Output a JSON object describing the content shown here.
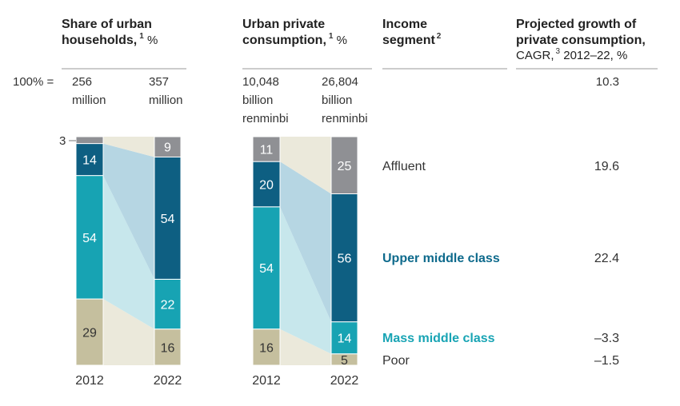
{
  "headers": {
    "col1_line1": "Share of urban",
    "col1_line2": "households,",
    "col1_sup": "1",
    "col1_unit": " %",
    "col2_line1": "Urban private",
    "col2_line2": "consumption,",
    "col2_sup": "1",
    "col2_unit": " %",
    "col3_line1": "Income",
    "col3_line2": "segment",
    "col3_sup": "2",
    "col4_line1": "Projected growth of",
    "col4_line2": "private consumption,",
    "col4_line3a": "CAGR,",
    "col4_sup": "3",
    "col4_line3b": " 2012–22, %"
  },
  "totals": {
    "label": "100% =",
    "hh_2012": [
      "256",
      "million"
    ],
    "hh_2022": [
      "357",
      "million"
    ],
    "cons_2012": [
      "10,048",
      "billion",
      "renminbi"
    ],
    "cons_2022": [
      "26,804",
      "billion",
      "renminbi"
    ],
    "total_growth": "10.3"
  },
  "colors": {
    "affluent": "#8f9094",
    "upper_middle": "#0e5f82",
    "mass_middle": "#17a3b3",
    "poor": "#c5bf9e",
    "flow_affluent": "#ebe9db",
    "flow_upper": "#b6d6e3",
    "flow_mass": "#c7e7ec",
    "flow_poor": "#ebe9db",
    "label_upper": "#0e6a8c",
    "label_mass": "#18a4b4"
  },
  "chart_data": [
    {
      "type": "bar",
      "stacked": true,
      "title": "Share of urban households, %",
      "categories": [
        "2012",
        "2022"
      ],
      "series": [
        {
          "name": "Poor",
          "values": [
            29,
            16
          ]
        },
        {
          "name": "Mass middle class",
          "values": [
            54,
            22
          ]
        },
        {
          "name": "Upper middle class",
          "values": [
            14,
            54
          ]
        },
        {
          "name": "Affluent",
          "values": [
            3,
            9
          ]
        }
      ]
    },
    {
      "type": "bar",
      "stacked": true,
      "title": "Urban private consumption, %",
      "categories": [
        "2012",
        "2022"
      ],
      "series": [
        {
          "name": "Poor",
          "values": [
            16,
            5
          ]
        },
        {
          "name": "Mass middle class",
          "values": [
            54,
            14
          ]
        },
        {
          "name": "Upper middle class",
          "values": [
            20,
            56
          ]
        },
        {
          "name": "Affluent",
          "values": [
            11,
            25
          ]
        }
      ]
    }
  ],
  "segments": [
    {
      "key": "affluent",
      "label": "Affluent",
      "growth": "19.6"
    },
    {
      "key": "upper_middle",
      "label": "Upper middle class",
      "growth": "22.4"
    },
    {
      "key": "mass_middle",
      "label": "Mass middle class",
      "growth": "–3.3"
    },
    {
      "key": "poor",
      "label": "Poor",
      "growth": "–1.5"
    }
  ]
}
